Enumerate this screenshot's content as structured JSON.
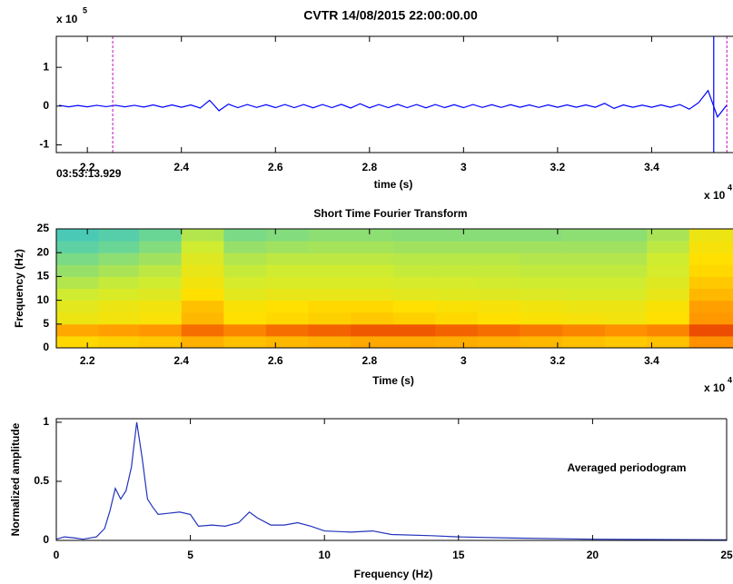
{
  "chart_data": [
    {
      "type": "line",
      "title": "CVTR 14/08/2015  22:00:00.00",
      "xlabel": "time (s)",
      "start_label": "03:53:13.929",
      "y_exponent": {
        "base": "x 10",
        "power": "5"
      },
      "x_exponent": {
        "base": "x 10",
        "power": "4"
      },
      "xlim": [
        2.134,
        3.573
      ],
      "ylim": [
        -1.2,
        1.8
      ],
      "xticks": [
        2.2,
        2.4,
        2.6,
        2.8,
        3,
        3.2,
        3.4
      ],
      "yticks": [
        -1,
        0,
        1
      ],
      "color": "#0000ff",
      "x": [
        2.14,
        2.16,
        2.18,
        2.2,
        2.22,
        2.24,
        2.26,
        2.28,
        2.3,
        2.32,
        2.34,
        2.36,
        2.38,
        2.4,
        2.42,
        2.44,
        2.46,
        2.48,
        2.5,
        2.52,
        2.54,
        2.56,
        2.58,
        2.6,
        2.62,
        2.64,
        2.66,
        2.68,
        2.7,
        2.72,
        2.74,
        2.76,
        2.78,
        2.8,
        2.82,
        2.84,
        2.86,
        2.88,
        2.9,
        2.92,
        2.94,
        2.96,
        2.98,
        3,
        3.02,
        3.04,
        3.06,
        3.08,
        3.1,
        3.12,
        3.14,
        3.16,
        3.18,
        3.2,
        3.22,
        3.24,
        3.26,
        3.28,
        3.3,
        3.32,
        3.34,
        3.36,
        3.38,
        3.4,
        3.42,
        3.44,
        3.46,
        3.48,
        3.5,
        3.52,
        3.54,
        3.56
      ],
      "values": [
        0.02,
        -0.02,
        0.015,
        -0.02,
        0.02,
        -0.015,
        0.02,
        -0.02,
        0.02,
        -0.025,
        0.03,
        -0.03,
        0.03,
        -0.03,
        0.03,
        -0.05,
        0.15,
        -0.12,
        0.05,
        -0.04,
        0.04,
        -0.035,
        0.035,
        -0.04,
        0.04,
        -0.04,
        0.04,
        -0.045,
        0.04,
        -0.04,
        0.045,
        -0.05,
        0.06,
        -0.045,
        0.04,
        -0.04,
        0.045,
        -0.04,
        0.04,
        -0.045,
        0.04,
        -0.04,
        0.035,
        -0.04,
        0.04,
        -0.035,
        0.035,
        -0.035,
        0.035,
        -0.03,
        0.03,
        -0.035,
        0.03,
        -0.03,
        0.03,
        -0.03,
        0.03,
        -0.03,
        0.07,
        -0.06,
        0.03,
        -0.03,
        0.025,
        -0.03,
        0.03,
        -0.03,
        0.04,
        -0.08,
        0.09,
        0.4,
        -0.28,
        0.03
      ],
      "markers": [
        {
          "x": 2.254,
          "color": "#cc33cc",
          "style": "dashed"
        },
        {
          "x": 3.532,
          "color": "#0000ff",
          "style": "solid"
        },
        {
          "x": 3.56,
          "color": "#cc33cc",
          "style": "dashed"
        }
      ]
    },
    {
      "type": "heatmap",
      "title": "Short Time Fourier Transform",
      "xlabel": "Time (s)",
      "ylabel": "Frequency (Hz)",
      "x_exponent": {
        "base": "x 10",
        "power": "4"
      },
      "xlim": [
        2.134,
        3.573
      ],
      "ylim": [
        0,
        25
      ],
      "xticks": [
        2.2,
        2.4,
        2.6,
        2.8,
        3,
        3.2,
        3.4
      ],
      "yticks": [
        0,
        5,
        10,
        15,
        20,
        25
      ],
      "colormap": [
        "#30c0d0",
        "#70d890",
        "#d0ec30",
        "#ffe000",
        "#ff9000",
        "#e02000"
      ],
      "zlim": [
        0,
        1
      ],
      "xbins": [
        2.134,
        2.224,
        2.31,
        2.4,
        2.49,
        2.58,
        2.67,
        2.76,
        2.85,
        2.94,
        3.03,
        3.12,
        3.21,
        3.3,
        3.39,
        3.48,
        3.573
      ],
      "ybins": [
        0,
        2.5,
        5,
        7.5,
        10,
        12.5,
        15,
        17.5,
        20,
        22.5,
        25
      ],
      "z": [
        [
          0.62,
          0.64,
          0.66,
          0.72,
          0.68,
          0.7,
          0.72,
          0.74,
          0.74,
          0.73,
          0.72,
          0.7,
          0.68,
          0.66,
          0.68,
          0.8
        ],
        [
          0.74,
          0.76,
          0.78,
          0.86,
          0.82,
          0.86,
          0.88,
          0.9,
          0.9,
          0.88,
          0.86,
          0.84,
          0.82,
          0.8,
          0.82,
          0.92
        ],
        [
          0.52,
          0.55,
          0.57,
          0.7,
          0.6,
          0.62,
          0.64,
          0.66,
          0.64,
          0.62,
          0.6,
          0.58,
          0.56,
          0.55,
          0.6,
          0.78
        ],
        [
          0.48,
          0.52,
          0.54,
          0.68,
          0.58,
          0.6,
          0.62,
          0.62,
          0.6,
          0.58,
          0.56,
          0.54,
          0.52,
          0.52,
          0.58,
          0.76
        ],
        [
          0.4,
          0.44,
          0.46,
          0.6,
          0.48,
          0.5,
          0.5,
          0.5,
          0.48,
          0.47,
          0.46,
          0.45,
          0.44,
          0.44,
          0.5,
          0.7
        ],
        [
          0.34,
          0.38,
          0.4,
          0.54,
          0.42,
          0.44,
          0.44,
          0.44,
          0.42,
          0.42,
          0.41,
          0.4,
          0.4,
          0.4,
          0.46,
          0.66
        ],
        [
          0.28,
          0.32,
          0.36,
          0.5,
          0.38,
          0.4,
          0.4,
          0.4,
          0.38,
          0.38,
          0.38,
          0.37,
          0.37,
          0.37,
          0.42,
          0.62
        ],
        [
          0.22,
          0.26,
          0.3,
          0.46,
          0.34,
          0.36,
          0.36,
          0.36,
          0.35,
          0.35,
          0.35,
          0.34,
          0.34,
          0.34,
          0.4,
          0.6
        ],
        [
          0.14,
          0.18,
          0.24,
          0.4,
          0.28,
          0.3,
          0.31,
          0.31,
          0.3,
          0.3,
          0.3,
          0.3,
          0.3,
          0.3,
          0.36,
          0.56
        ],
        [
          0.08,
          0.12,
          0.18,
          0.34,
          0.22,
          0.24,
          0.26,
          0.26,
          0.25,
          0.25,
          0.25,
          0.25,
          0.26,
          0.26,
          0.32,
          0.52
        ]
      ]
    },
    {
      "type": "line",
      "xlabel": "Frequency (Hz)",
      "ylabel": "Normalized amplitude",
      "annotation": "Averaged periodogram",
      "xlim": [
        0,
        25
      ],
      "ylim": [
        0,
        1.03
      ],
      "xticks": [
        0,
        5,
        10,
        15,
        20,
        25
      ],
      "yticks": [
        0,
        0.5,
        1
      ],
      "color": "#2233bb",
      "x": [
        0,
        0.3,
        0.7,
        1,
        1.5,
        1.8,
        2,
        2.2,
        2.4,
        2.6,
        2.8,
        3,
        3.2,
        3.4,
        3.6,
        3.8,
        4.2,
        4.6,
        5,
        5.3,
        5.8,
        6.3,
        6.8,
        7.2,
        7.5,
        8,
        8.5,
        9,
        9.5,
        10,
        11,
        11.8,
        12.5,
        14,
        15,
        17,
        20,
        25
      ],
      "values": [
        0.01,
        0.03,
        0.02,
        0.01,
        0.03,
        0.1,
        0.25,
        0.44,
        0.35,
        0.42,
        0.62,
        1,
        0.7,
        0.35,
        0.28,
        0.22,
        0.23,
        0.24,
        0.22,
        0.12,
        0.13,
        0.12,
        0.15,
        0.24,
        0.19,
        0.13,
        0.13,
        0.15,
        0.12,
        0.08,
        0.07,
        0.08,
        0.05,
        0.04,
        0.03,
        0.02,
        0.01,
        0.005
      ]
    }
  ]
}
